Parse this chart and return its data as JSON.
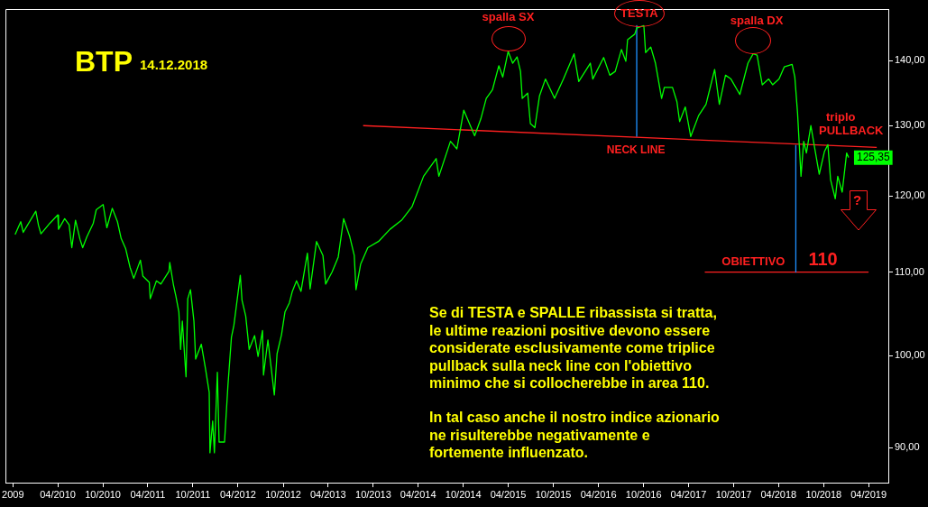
{
  "chart_data": {
    "type": "line",
    "title": "BTP",
    "subtitle": "14.12.2018",
    "log": true,
    "legend": false,
    "xlim": [
      "2009-09-01",
      "2019-06-20"
    ],
    "xticks": [
      {
        "value": "2009-10-01",
        "label": "2009"
      },
      {
        "value": "2010-04-01",
        "label": "04/2010"
      },
      {
        "value": "2010-10-01",
        "label": "10/2010"
      },
      {
        "value": "2011-04-01",
        "label": "04/2011"
      },
      {
        "value": "2011-10-01",
        "label": "10/2011"
      },
      {
        "value": "2012-04-01",
        "label": "04/2012"
      },
      {
        "value": "2012-10-01",
        "label": "10/2012"
      },
      {
        "value": "2013-04-01",
        "label": "04/2013"
      },
      {
        "value": "2013-10-01",
        "label": "10/2013"
      },
      {
        "value": "2014-04-01",
        "label": "04/2014"
      },
      {
        "value": "2014-10-01",
        "label": "10/2014"
      },
      {
        "value": "2015-04-01",
        "label": "04/2015"
      },
      {
        "value": "2015-10-01",
        "label": "10/2015"
      },
      {
        "value": "2016-04-01",
        "label": "04/2016"
      },
      {
        "value": "2016-10-01",
        "label": "10/2016"
      },
      {
        "value": "2017-04-01",
        "label": "04/2017"
      },
      {
        "value": "2017-10-01",
        "label": "10/2017"
      },
      {
        "value": "2018-04-01",
        "label": "04/2018"
      },
      {
        "value": "2018-10-01",
        "label": "10/2018"
      },
      {
        "value": "2019-04-01",
        "label": "04/2019"
      }
    ],
    "ylim": [
      86.5,
      148.5
    ],
    "yticks": [
      {
        "value": 90,
        "label": "90,00"
      },
      {
        "value": 100,
        "label": "100,00"
      },
      {
        "value": 110,
        "label": "110,00"
      },
      {
        "value": 120,
        "label": "120,00"
      },
      {
        "value": 130,
        "label": "130,00"
      },
      {
        "value": 140,
        "label": "140,00"
      }
    ],
    "series": [
      {
        "color": "#00ff00",
        "x": [
          "2009-10-10",
          "2009-11-02",
          "2009-11-12",
          "2010-01-02",
          "2010-01-13",
          "2010-01-23",
          "2010-02-28",
          "2010-04-01",
          "2010-04-04",
          "2010-04-29",
          "2010-05-17",
          "2010-05-28",
          "2010-06-12",
          "2010-06-30",
          "2010-07-11",
          "2010-07-28",
          "2010-08-23",
          "2010-09-04",
          "2010-10-02",
          "2010-10-17",
          "2010-11-08",
          "2010-11-29",
          "2010-12-14",
          "2011-01-01",
          "2011-01-19",
          "2011-02-03",
          "2011-03-02",
          "2011-03-12",
          "2011-04-07",
          "2011-04-11",
          "2011-05-06",
          "2011-05-24",
          "2011-06-26",
          "2011-06-29",
          "2011-07-14",
          "2011-07-24",
          "2011-08-05",
          "2011-08-12",
          "2011-08-19",
          "2011-09-03",
          "2011-09-10",
          "2011-09-21",
          "2011-10-05",
          "2011-10-12",
          "2011-11-04",
          "2011-11-21",
          "2011-12-06",
          "2011-12-09",
          "2011-12-20",
          "2011-12-27",
          "2012-01-08",
          "2012-01-15",
          "2012-02-06",
          "2012-02-20",
          "2012-03-05",
          "2012-03-15",
          "2012-04-10",
          "2012-04-17",
          "2012-05-02",
          "2012-05-16",
          "2012-06-07",
          "2012-06-21",
          "2012-07-09",
          "2012-07-13",
          "2012-07-31",
          "2012-08-26",
          "2012-09-06",
          "2012-09-24",
          "2012-10-08",
          "2012-10-26",
          "2012-11-07",
          "2012-11-24",
          "2012-12-12",
          "2013-01-07",
          "2013-01-18",
          "2013-02-13",
          "2013-03-11",
          "2013-03-22",
          "2013-04-17",
          "2013-05-12",
          "2013-06-03",
          "2013-06-28",
          "2013-07-16",
          "2013-07-23",
          "2013-08-11",
          "2013-09-09",
          "2013-10-22",
          "2013-12-08",
          "2014-01-24",
          "2014-03-07",
          "2014-04-23",
          "2014-06-13",
          "2014-06-24",
          "2014-08-10",
          "2014-09-05",
          "2014-10-03",
          "2014-11-16",
          "2014-12-11",
          "2015-01-02",
          "2015-01-27",
          "2015-02-22",
          "2015-03-10",
          "2015-04-01",
          "2015-04-19",
          "2015-05-07",
          "2015-05-21",
          "2015-05-28",
          "2015-06-19",
          "2015-06-30",
          "2015-07-18",
          "2015-08-06",
          "2015-08-30",
          "2015-10-06",
          "2015-11-11",
          "2015-12-24",
          "2016-01-12",
          "2016-02-28",
          "2016-03-09",
          "2016-04-22",
          "2016-05-17",
          "2016-06-08",
          "2016-07-03",
          "2016-07-21",
          "2016-07-28",
          "2016-08-26",
          "2016-09-03",
          "2016-10-02",
          "2016-10-09",
          "2016-10-30",
          "2016-11-18",
          "2016-12-13",
          "2016-12-24",
          "2017-01-26",
          "2017-02-13",
          "2017-02-24",
          "2017-03-19",
          "2017-04-10",
          "2017-05-12",
          "2017-06-11",
          "2017-07-16",
          "2017-08-04",
          "2017-08-29",
          "2017-09-20",
          "2017-10-26",
          "2017-11-28",
          "2017-12-19",
          "2018-01-04",
          "2018-01-25",
          "2018-02-20",
          "2018-03-08",
          "2018-04-03",
          "2018-04-24",
          "2018-05-26",
          "2018-06-06",
          "2018-06-17",
          "2018-06-24",
          "2018-07-01",
          "2018-07-12",
          "2018-07-23",
          "2018-08-10",
          "2018-08-25",
          "2018-09-13",
          "2018-10-04",
          "2018-10-18",
          "2018-10-29",
          "2018-11-17",
          "2018-11-27",
          "2018-12-15",
          "2019-01-02",
          "2019-01-10"
        ],
        "values": [
          114.8,
          116.5,
          115.1,
          117.9,
          116.0,
          114.9,
          116.3,
          117.4,
          115.5,
          116.9,
          116.1,
          113.1,
          116.7,
          114.2,
          113.1,
          114.5,
          116.3,
          118.1,
          118.8,
          115.7,
          118.3,
          116.5,
          114.3,
          113.0,
          110.6,
          109.2,
          111.5,
          109.5,
          108.7,
          106.7,
          108.9,
          108.5,
          110.1,
          111.2,
          108.4,
          107.0,
          105.1,
          100.7,
          104.0,
          97.6,
          106.7,
          107.8,
          104.0,
          99.6,
          101.3,
          98.5,
          95.9,
          89.5,
          92.8,
          89.5,
          98.1,
          90.6,
          90.6,
          96.7,
          102.1,
          103.5,
          109.6,
          106.5,
          104.6,
          100.7,
          102.3,
          99.9,
          102.9,
          97.8,
          101.8,
          95.6,
          100.2,
          102.4,
          105.1,
          106.2,
          107.6,
          108.9,
          107.6,
          112.4,
          107.9,
          113.9,
          112.1,
          108.5,
          110.0,
          111.9,
          116.9,
          114.5,
          112.1,
          107.8,
          111.0,
          113.1,
          113.9,
          115.5,
          116.7,
          118.5,
          122.7,
          125.2,
          122.7,
          127.7,
          126.6,
          132.3,
          128.5,
          131.0,
          134.1,
          135.4,
          139.2,
          137.4,
          141.5,
          139.6,
          140.6,
          138.3,
          134.1,
          134.9,
          130.3,
          129.7,
          134.5,
          137.1,
          134.1,
          137.1,
          141.1,
          136.7,
          139.6,
          137.1,
          140.5,
          137.7,
          138.3,
          141.8,
          139.9,
          143.4,
          144.3,
          145.3,
          145.7,
          141.3,
          142.2,
          139.6,
          134.1,
          135.8,
          135.8,
          133.6,
          130.6,
          132.8,
          128.4,
          131.5,
          133.2,
          138.6,
          133.2,
          137.7,
          137.1,
          134.7,
          139.6,
          141.1,
          140.9,
          136.2,
          137.1,
          136.2,
          137.1,
          139.0,
          139.4,
          137.4,
          131.9,
          127.2,
          122.7,
          127.7,
          126.0,
          130.0,
          126.8,
          123.0,
          126.2,
          127.2,
          122.2,
          119.6,
          122.7,
          120.5,
          126.0,
          125.35
        ],
        "value_labels": [
          null,
          null,
          null,
          null,
          null,
          null,
          null,
          null,
          null,
          null,
          null,
          null,
          null,
          null,
          null,
          null,
          null,
          null,
          null,
          null,
          null,
          null,
          null,
          null,
          null,
          null,
          null,
          null,
          null,
          null,
          null,
          null,
          null,
          null,
          null,
          null,
          null,
          null,
          null,
          null,
          null,
          null,
          null,
          null,
          null,
          null,
          null,
          null,
          null,
          null,
          null,
          null,
          null,
          null,
          null,
          null,
          null,
          null,
          null,
          null,
          null,
          null,
          null,
          null,
          null,
          null,
          null,
          null,
          null,
          null,
          null,
          null,
          null,
          null,
          null,
          null,
          null,
          null,
          null,
          null,
          null,
          null,
          null,
          null,
          null,
          null,
          null,
          null,
          null,
          null,
          null,
          null,
          null,
          null,
          null,
          null,
          null,
          null,
          null,
          null,
          null,
          null,
          null,
          null,
          null,
          null,
          null,
          null,
          null,
          null,
          null,
          null,
          null,
          null,
          null,
          null,
          null,
          null,
          null,
          null,
          null,
          null,
          null,
          null,
          null,
          null,
          null,
          null,
          null,
          null,
          null,
          null,
          null,
          null,
          null,
          null,
          null,
          null,
          null,
          null,
          null,
          null,
          null,
          null,
          null,
          null,
          null,
          null,
          null,
          null,
          null,
          null,
          null,
          null,
          null,
          null,
          null,
          null,
          null,
          null,
          null,
          null,
          null,
          null,
          null,
          null,
          null,
          null,
          null,
          "125,35"
        ]
      },
      {
        "color": "#ff2020",
        "x": [
          "2013-08-21",
          "2019-05-04"
        ],
        "values": [
          130.0,
          126.8
        ]
      },
      {
        "color": "#1e90ff",
        "x": [
          "2016-09-03",
          "2016-09-03"
        ],
        "values": [
          145.7,
          128.4
        ]
      },
      {
        "color": "#1e90ff",
        "x": [
          "2018-06-10",
          "2018-06-10"
        ],
        "values": [
          127.1,
          110.0
        ]
      },
      {
        "color": "#ff2020",
        "x": [
          "2017-06-06",
          "2019-04-01"
        ],
        "values": [
          110.0,
          110.0
        ]
      }
    ],
    "annotations": [
      {
        "text": "spalla SX",
        "x": "2015-04-01",
        "y": 141.5
      },
      {
        "text": "TESTA",
        "x": "2016-10-02",
        "y": 145.7
      },
      {
        "text": "spalla DX",
        "x": "2017-12-19",
        "y": 141.1
      },
      {
        "text": "NECK LINE",
        "x": "2016-08-16",
        "y": 128.3
      },
      {
        "text": "triplo PULLBACK",
        "x": "2018-10-18",
        "y": 127.2
      },
      {
        "text": "OBIETTIVO",
        "x": "2018-06-10",
        "y": 110
      },
      {
        "text": "110",
        "x": "2018-06-10",
        "y": 110
      },
      "?",
      "Se di TESTA e SPALLE ribassista si tratta, le ultime reazioni positive devono essere considerate esclusivamente come triplice pullback sulla neck line con l'obiettivo minimo che si collocherebbe in area 110.",
      "In tal caso anche il nostro indice azionario ne risulterebbe negativamente e fortemente influenzato."
    ]
  }
}
